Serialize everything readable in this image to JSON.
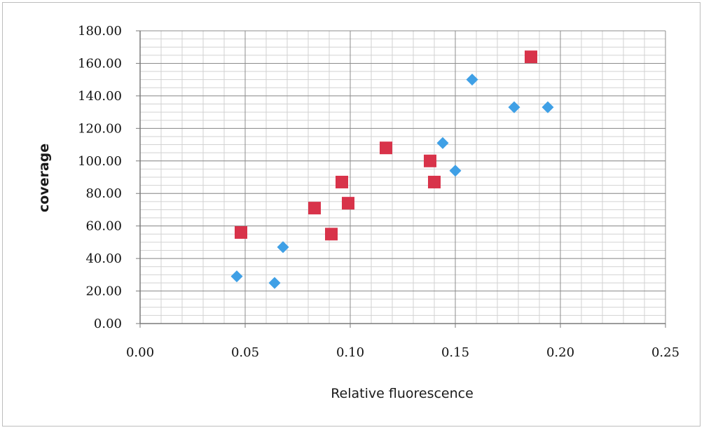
{
  "chart_data": {
    "type": "scatter",
    "title": "",
    "xlabel": "Relative fluorescence",
    "ylabel": "coverage",
    "xlim": [
      0,
      0.25
    ],
    "ylim": [
      0,
      180
    ],
    "x_ticks": [
      "0.00",
      "0.05",
      "0.10",
      "0.15",
      "0.20",
      "0.25"
    ],
    "y_ticks": [
      "0.00",
      "20.00",
      "40.00",
      "60.00",
      "80.00",
      "100.00",
      "120.00",
      "140.00",
      "160.00",
      "180.00"
    ],
    "grid": true,
    "legend": "none",
    "series": [
      {
        "marker": "diamond",
        "color": "#3fa0e6",
        "points": [
          [
            0.046,
            29
          ],
          [
            0.064,
            25
          ],
          [
            0.068,
            47
          ],
          [
            0.144,
            111
          ],
          [
            0.15,
            94
          ],
          [
            0.158,
            150
          ],
          [
            0.178,
            133
          ],
          [
            0.194,
            133
          ]
        ]
      },
      {
        "marker": "square",
        "color": "#d8334a",
        "points": [
          [
            0.048,
            56
          ],
          [
            0.083,
            71
          ],
          [
            0.091,
            55
          ],
          [
            0.096,
            87
          ],
          [
            0.099,
            74
          ],
          [
            0.117,
            108
          ],
          [
            0.138,
            100
          ],
          [
            0.14,
            87
          ],
          [
            0.186,
            164
          ]
        ]
      }
    ]
  }
}
